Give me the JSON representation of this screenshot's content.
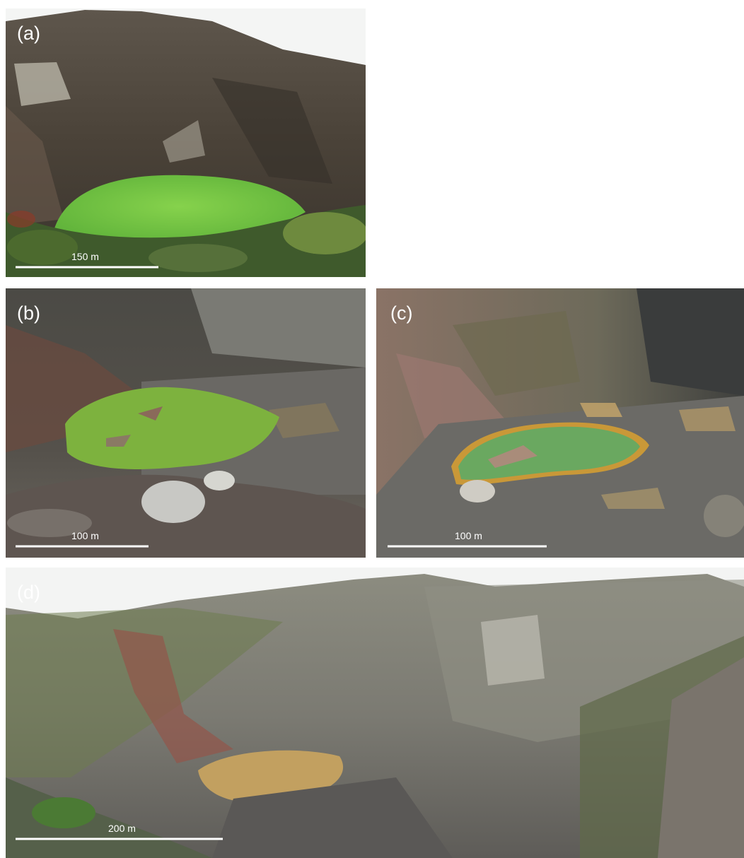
{
  "panels": [
    {
      "label": "(a)",
      "scale_bar": "150 m"
    },
    {
      "label": "(b)",
      "scale_bar": "100 m"
    },
    {
      "label": "(c)",
      "scale_bar": "100 m"
    },
    {
      "label": "(d)",
      "scale_bar": "200 m"
    }
  ]
}
